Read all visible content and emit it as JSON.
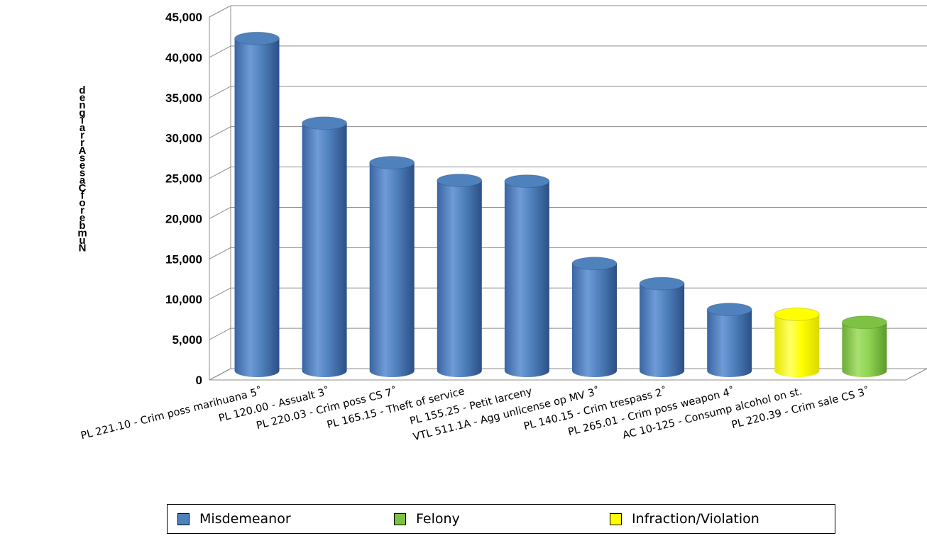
{
  "chart_data": {
    "type": "bar",
    "title": "",
    "xlabel": "",
    "ylabel": "Number of Cases Arraigned",
    "ylim": [
      0,
      45000
    ],
    "yticks": [
      0,
      5000,
      10000,
      15000,
      20000,
      25000,
      30000,
      35000,
      40000,
      45000
    ],
    "ytick_labels": [
      "0",
      "5,000",
      "10,000",
      "15,000",
      "20,000",
      "25,000",
      "30,000",
      "35,000",
      "40,000",
      "45,000"
    ],
    "grid": true,
    "three_d": true,
    "legend_position": "bottom",
    "categories": [
      "PL 221.10 - Crim poss marihuana 5˚",
      "PL 120.00 - Assualt 3˚",
      "PL 220.03 - Crim poss CS 7˚",
      "PL 165.15 - Theft of service",
      "PL 155.25 - Petit larceny",
      "VTL 511.1A - Agg unlicense op MV 3˚",
      "PL 140.15 - Crim trespass 2˚",
      "PL 265.01 - Crim poss weapon 4˚",
      "AC 10-125 - Consump alcohol on st.",
      "PL 220.39 - Crim sale CS 3˚"
    ],
    "values": [
      41200,
      30700,
      25800,
      23600,
      23500,
      13300,
      10800,
      7600,
      7000,
      6000
    ],
    "bar_class": [
      "Misdemeanor",
      "Misdemeanor",
      "Misdemeanor",
      "Misdemeanor",
      "Misdemeanor",
      "Misdemeanor",
      "Misdemeanor",
      "Misdemeanor",
      "Infraction/Violation",
      "Felony"
    ],
    "legend": [
      {
        "name": "Misdemeanor",
        "color": "#4f81bd"
      },
      {
        "name": "Felony",
        "color": "#7dc243"
      },
      {
        "name": "Infraction/Violation",
        "color": "#ffff00"
      }
    ]
  },
  "ylabel_vertical_text": "Number of Cases Arraigned"
}
